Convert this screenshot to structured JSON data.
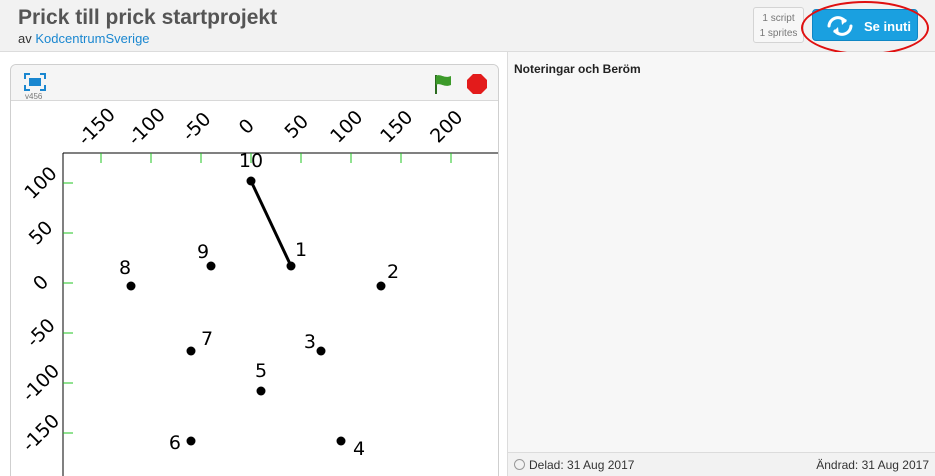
{
  "project": {
    "title": "Prick till prick startprojekt",
    "by_prefix": "av",
    "author": "KodcentrumSverige"
  },
  "counts": {
    "scripts": "1 script",
    "sprites": "1 sprites"
  },
  "see_inside": {
    "label": "Se inuti",
    "color": "#1aa0e0"
  },
  "annotation": {
    "color": "#e01010"
  },
  "player": {
    "version": "v456",
    "fullscreen_icon": "fullscreen-icon",
    "flag_icon": "green-flag-icon",
    "stop_icon": "stop-icon"
  },
  "stage": {
    "x_ticks": [
      "-150",
      "-100",
      "-50",
      "0",
      "50",
      "100",
      "150",
      "200"
    ],
    "y_ticks": [
      "100",
      "50",
      "0",
      "-50",
      "-100",
      "-150"
    ],
    "points": [
      {
        "label": "1",
        "x": 40,
        "y": 17
      },
      {
        "label": "2",
        "x": 130,
        "y": -3
      },
      {
        "label": "3",
        "x": 70,
        "y": -68
      },
      {
        "label": "4",
        "x": 90,
        "y": -158
      },
      {
        "label": "5",
        "x": 10,
        "y": -108
      },
      {
        "label": "6",
        "x": -60,
        "y": -158
      },
      {
        "label": "7",
        "x": -60,
        "y": -68
      },
      {
        "label": "8",
        "x": -120,
        "y": -3
      },
      {
        "label": "9",
        "x": -40,
        "y": 17
      },
      {
        "label": "10",
        "x": 0,
        "y": 102
      }
    ],
    "line": {
      "from": "1",
      "to": "10"
    }
  },
  "notes": {
    "title": "Noteringar och Beröm"
  },
  "footer": {
    "shared": "Delad: 31 Aug 2017",
    "modified": "Ändrad: 31 Aug 2017"
  }
}
